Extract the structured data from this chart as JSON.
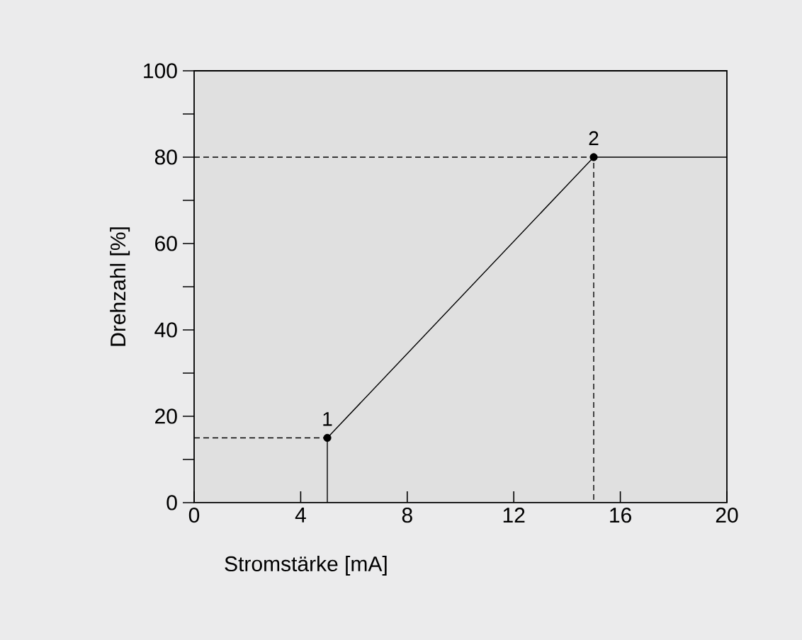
{
  "chart_data": {
    "type": "line",
    "xlabel": "Stromstärke [mA]",
    "ylabel": "Drehzahl [%]",
    "xlim": [
      0,
      20
    ],
    "ylim": [
      0,
      100
    ],
    "xticks": [
      0,
      4,
      8,
      12,
      16,
      20
    ],
    "yticks": [
      0,
      {
        "value": 10,
        "label": null
      },
      20,
      {
        "value": 30,
        "label": null
      },
      40,
      {
        "value": 50,
        "label": null
      },
      60,
      {
        "value": 70,
        "label": null
      },
      80,
      {
        "value": 90,
        "label": null
      },
      100
    ],
    "series": [
      {
        "color": "#000000",
        "line_style": "solid",
        "x": [
          5,
          5,
          15,
          20
        ],
        "values": [
          0,
          15,
          80,
          80
        ]
      },
      {
        "type": "line",
        "color": "#000000",
        "line_style": "dashed",
        "x": [
          0,
          5
        ],
        "values": [
          15,
          15
        ]
      },
      {
        "type": "line",
        "color": "#000000",
        "line_style": "dashed",
        "x": [
          0,
          15,
          15
        ],
        "values": [
          80,
          80,
          0
        ]
      },
      {
        "type": "scatter",
        "color": "#000000",
        "marker": "circle",
        "x": [
          5,
          15
        ],
        "values": [
          15,
          80
        ]
      }
    ],
    "annotations": [
      {
        "text": "1",
        "x": 5,
        "y": 15
      },
      {
        "text": "2",
        "x": 15,
        "y": 80
      }
    ]
  }
}
